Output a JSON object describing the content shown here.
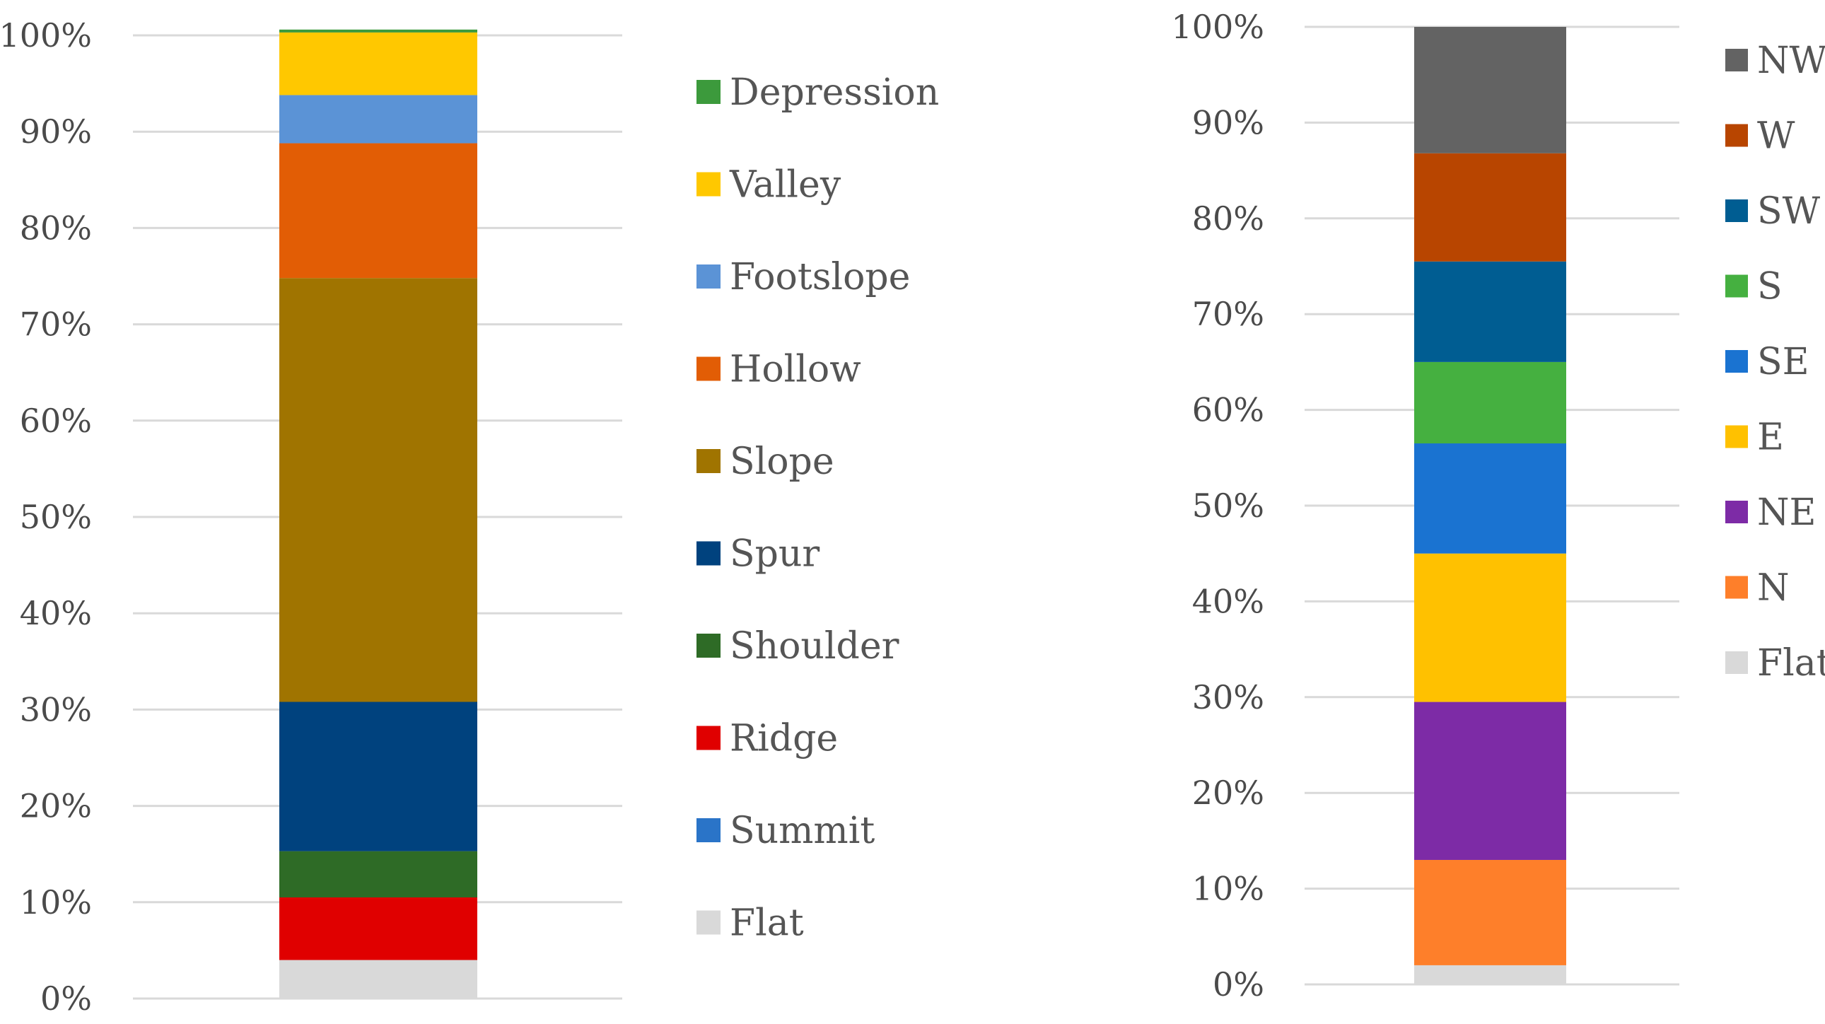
{
  "chart_data": [
    {
      "type": "bar",
      "stacked": true,
      "title": "",
      "xlabel": "",
      "ylabel": "",
      "ylim": [
        0,
        100
      ],
      "y_ticks": [
        "0%",
        "10%",
        "20%",
        "30%",
        "40%",
        "50%",
        "60%",
        "70%",
        "80%",
        "90%",
        "100%"
      ],
      "grid": true,
      "legend_position": "right",
      "series": [
        {
          "name": "Flat",
          "value": 4,
          "color": "#d9d9d9"
        },
        {
          "name": "Summit",
          "value": 0,
          "color": "#2a74c8"
        },
        {
          "name": "Ridge",
          "value": 6.5,
          "color": "#e00000"
        },
        {
          "name": "Shoulder",
          "value": 4.8,
          "color": "#2e6b26"
        },
        {
          "name": "Spur",
          "value": 15.5,
          "color": "#00427e"
        },
        {
          "name": "Slope",
          "value": 44,
          "color": "#a07400"
        },
        {
          "name": "Hollow",
          "value": 14,
          "color": "#e25d05"
        },
        {
          "name": "Footslope",
          "value": 5,
          "color": "#5b93d6"
        },
        {
          "name": "Valley",
          "value": 6.5,
          "color": "#ffc800"
        },
        {
          "name": "Depression",
          "value": 0.3,
          "color": "#3c9a3c"
        }
      ]
    },
    {
      "type": "bar",
      "stacked": true,
      "title": "",
      "xlabel": "",
      "ylabel": "",
      "ylim": [
        0,
        100
      ],
      "y_ticks": [
        "0%",
        "10%",
        "20%",
        "30%",
        "40%",
        "50%",
        "60%",
        "70%",
        "80%",
        "90%",
        "100%"
      ],
      "grid": true,
      "legend_position": "right",
      "series": [
        {
          "name": "Flat",
          "value": 2,
          "color": "#d9d9d9"
        },
        {
          "name": "N",
          "value": 11,
          "color": "#fe7f2a"
        },
        {
          "name": "NE",
          "value": 16.5,
          "color": "#7d2ba6"
        },
        {
          "name": "E",
          "value": 15.5,
          "color": "#ffc100"
        },
        {
          "name": "SE",
          "value": 11.5,
          "color": "#1a73d1"
        },
        {
          "name": "S",
          "value": 8.5,
          "color": "#45b040"
        },
        {
          "name": "SW",
          "value": 10.5,
          "color": "#005d92"
        },
        {
          "name": "W",
          "value": 11.3,
          "color": "#b84500"
        },
        {
          "name": "NW",
          "value": 13.2,
          "color": "#636363"
        }
      ]
    }
  ]
}
